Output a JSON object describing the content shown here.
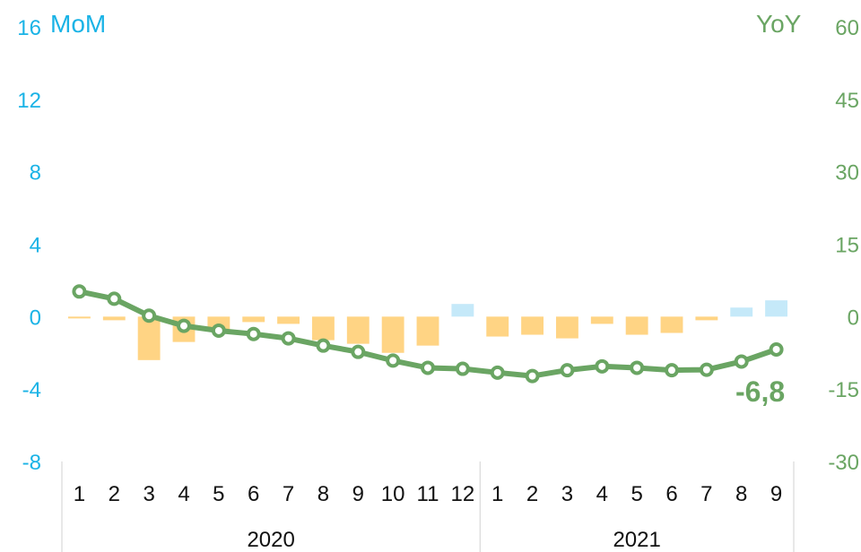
{
  "chart_data": {
    "type": "bar",
    "title": "",
    "categories": [
      "1",
      "2",
      "3",
      "4",
      "5",
      "6",
      "7",
      "8",
      "9",
      "10",
      "11",
      "12",
      "1",
      "2",
      "3",
      "4",
      "5",
      "6",
      "7",
      "8",
      "9"
    ],
    "years": [
      {
        "label": "2020",
        "count": 12
      },
      {
        "label": "2021",
        "count": 9
      }
    ],
    "left_axis": {
      "label": "MoM",
      "ylim": [
        -8,
        16
      ],
      "ticks": [
        -8,
        -4,
        0,
        4,
        8,
        12,
        16
      ],
      "tick_labels": [
        "-8",
        "-4",
        "0",
        "4",
        "8",
        "12",
        "16"
      ]
    },
    "right_axis": {
      "label": "YoY",
      "ylim": [
        -30,
        60
      ],
      "ticks": [
        -30,
        -15,
        0,
        15,
        30,
        45,
        60
      ],
      "tick_labels": [
        "-30",
        "-15",
        "0",
        "15",
        "30",
        "45",
        "60"
      ]
    },
    "series": [
      {
        "type": "bar",
        "axis": "left",
        "values": [
          -0.1,
          -0.2,
          -2.4,
          -1.4,
          -0.7,
          -0.3,
          -0.4,
          -1.3,
          -1.5,
          -2.0,
          -1.6,
          0.7,
          -1.1,
          -1.0,
          -1.2,
          -0.4,
          -1.0,
          -0.9,
          -0.2,
          0.5,
          0.9
        ]
      },
      {
        "type": "line",
        "axis": "right",
        "values": [
          5.2,
          3.7,
          0.2,
          -1.9,
          -2.9,
          -3.6,
          -4.5,
          -6.0,
          -7.3,
          -9.1,
          -10.6,
          -10.8,
          -11.6,
          -12.3,
          -11.1,
          -10.3,
          -10.6,
          -11.1,
          -11.0,
          -9.3,
          -6.8
        ]
      }
    ],
    "colors": {
      "positive_bar": "#c5e9f9",
      "negative_bar": "#ffd484",
      "line": "#6aa563",
      "left_axis": "#1ab3e6",
      "right_axis": "#6aa563"
    },
    "last_value_label": "-6,8",
    "grid": false,
    "legend": "none"
  }
}
